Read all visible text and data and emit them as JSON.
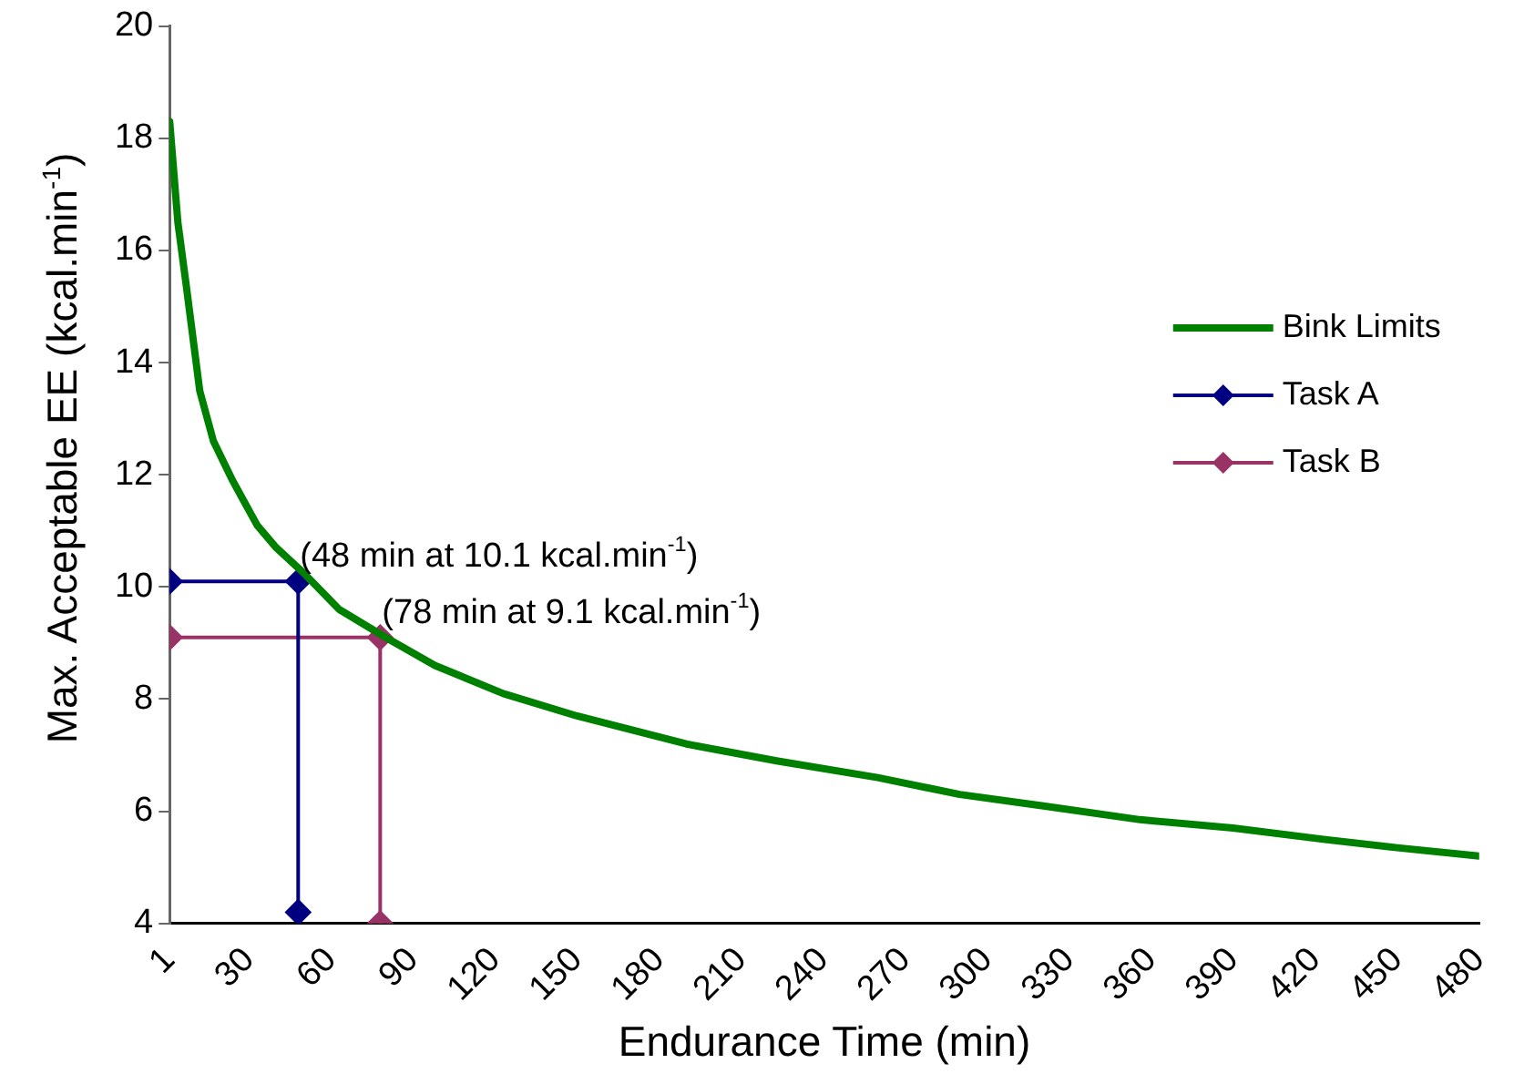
{
  "chart_data": {
    "type": "line",
    "xlabel": "Endurance Time (min)",
    "ylabel": "Max. Acceptable EE (kcal.min$^{-1}$)",
    "xlim": [
      1,
      480
    ],
    "xticks": [
      1,
      30,
      60,
      90,
      120,
      150,
      180,
      210,
      240,
      270,
      300,
      330,
      360,
      390,
      420,
      450,
      480
    ],
    "ylim": [
      4,
      20
    ],
    "yticks": [
      4,
      6,
      8,
      10,
      12,
      14,
      16,
      18,
      20
    ],
    "grid": false,
    "legend": "right",
    "series": [
      {
        "name": "Bink Limits",
        "color": "#008000",
        "marker": "none",
        "x": [
          1,
          4,
          7,
          12,
          17,
          24,
          33,
          40,
          50,
          63,
          80,
          98,
          123,
          150,
          190,
          223,
          260,
          290,
          320,
          356,
          390,
          423,
          450,
          480
        ],
        "values": [
          18.3,
          16.5,
          15.4,
          13.5,
          12.6,
          11.9,
          11.1,
          10.7,
          10.25,
          9.6,
          9.1,
          8.6,
          8.1,
          7.7,
          7.2,
          6.9,
          6.6,
          6.3,
          6.1,
          5.85,
          5.7,
          5.5,
          5.35,
          5.2
        ]
      },
      {
        "name": "Task A",
        "color": "#000080",
        "marker": "diamond",
        "x": [
          1,
          48,
          48
        ],
        "values": [
          10.1,
          10.1,
          4.2
        ]
      },
      {
        "name": "Task B",
        "color": "#993366",
        "marker": "diamond",
        "x": [
          1,
          78,
          78
        ],
        "values": [
          9.1,
          9.1,
          4
        ]
      }
    ],
    "annotations": [
      {
        "text": "(48 min at 10.1 kcal.min$^{-1}$)",
        "x": 48,
        "y": 10.1
      },
      {
        "text": "(78 min at 9.1 kcal.min$^{-1}$)",
        "x": 78,
        "y": 9.1
      }
    ]
  }
}
